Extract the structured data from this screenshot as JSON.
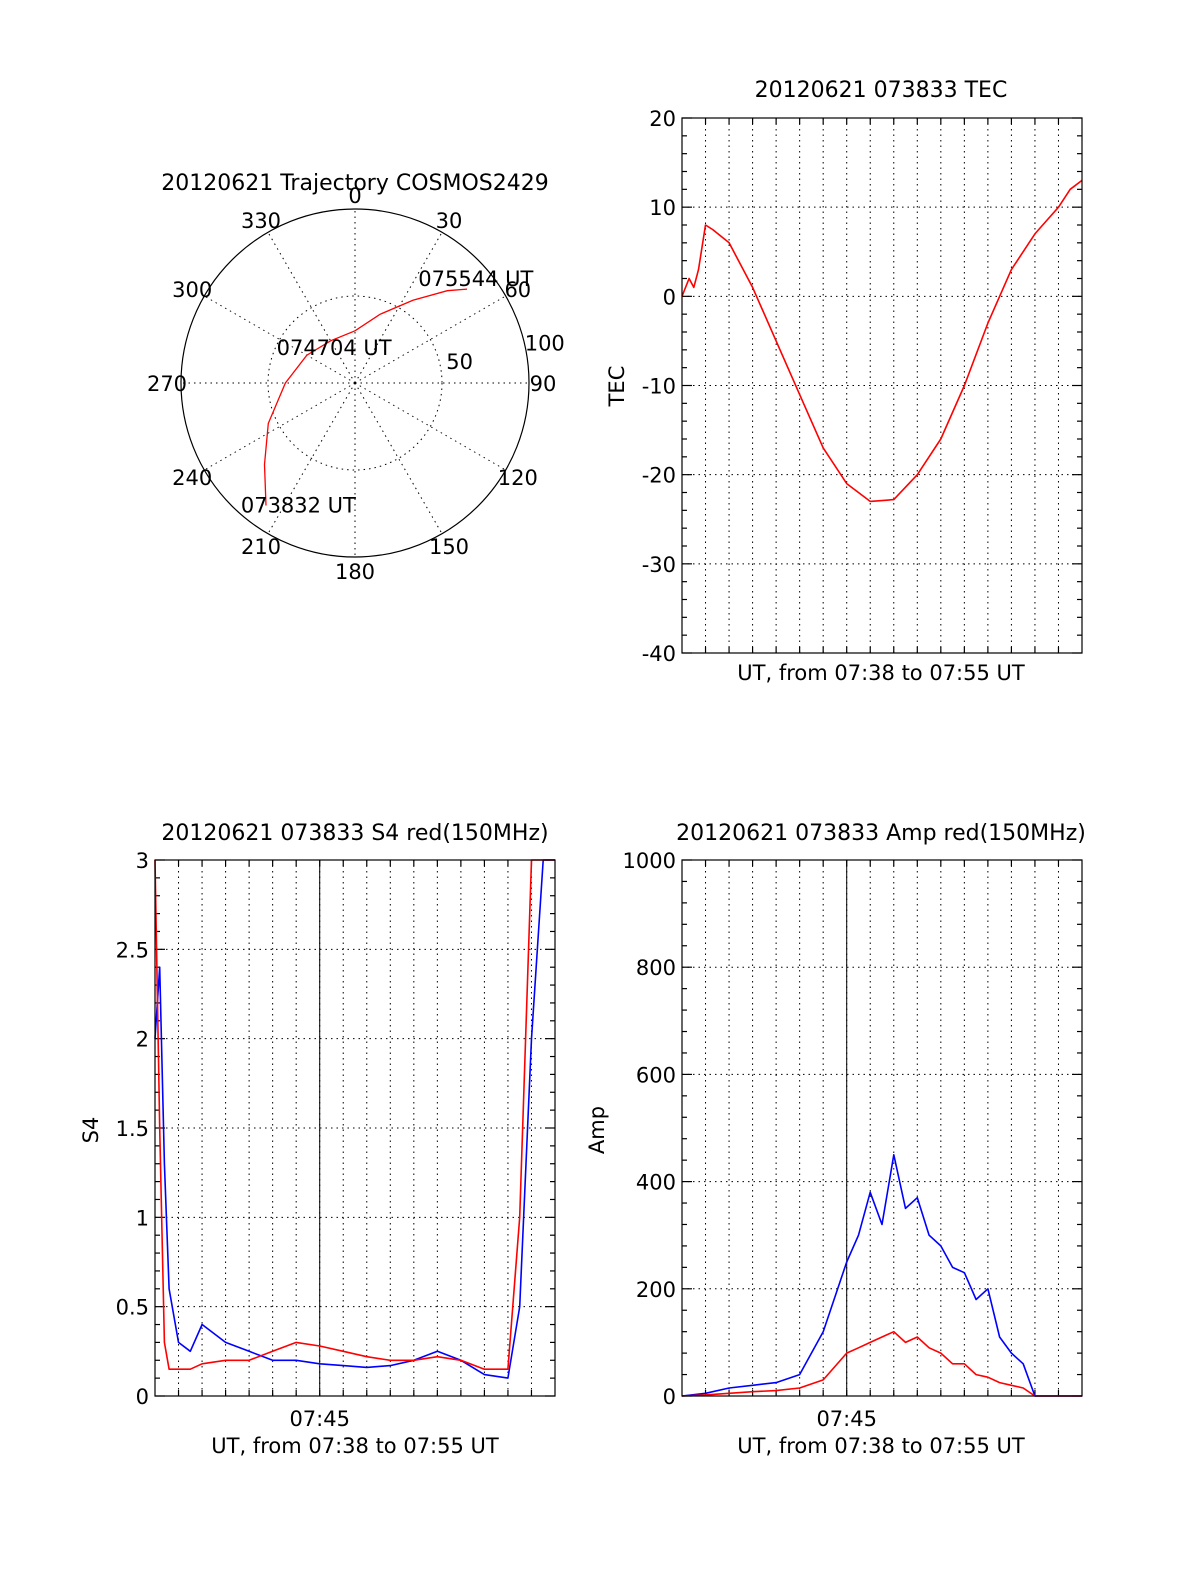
{
  "colors": {
    "red": "#ff0000",
    "blue": "#0000ff",
    "axis": "#000000"
  },
  "chart_data": [
    {
      "type": "polar",
      "title": "20120621 Trajectory COSMOS2429",
      "azimuth_labels": [
        "0",
        "30",
        "60",
        "90",
        "120",
        "150",
        "180",
        "210",
        "240",
        "270",
        "300",
        "330"
      ],
      "radial_labels": [
        "50",
        "100"
      ],
      "radial_values": [
        50,
        100
      ],
      "rmax": 100,
      "series": [
        {
          "color": "#ff0000",
          "points": [
            {
              "az": 216,
              "r": 87
            },
            {
              "az": 228,
              "r": 70
            },
            {
              "az": 245,
              "r": 55
            },
            {
              "az": 270,
              "r": 40
            },
            {
              "az": 300,
              "r": 32
            },
            {
              "az": 330,
              "r": 28
            },
            {
              "az": 0,
              "r": 30
            },
            {
              "az": 20,
              "r": 42
            },
            {
              "az": 35,
              "r": 58
            },
            {
              "az": 45,
              "r": 75
            },
            {
              "az": 50,
              "r": 84
            }
          ]
        }
      ],
      "annotations": [
        {
          "text": "075544 UT",
          "az": 49,
          "r": 92
        },
        {
          "text": "074704 UT",
          "az": 330,
          "r": 24
        },
        {
          "text": "073832 UT",
          "az": 205,
          "r": 77
        }
      ]
    },
    {
      "type": "line",
      "title": "20120621 073833 TEC",
      "xlabel": "UT, from 07:38 to 07:55 UT",
      "ylabel": "TEC",
      "xlim": [
        0,
        17
      ],
      "ylim": [
        -40,
        20
      ],
      "yticks": [
        "20",
        "10",
        "0",
        "-10",
        "-20",
        "-30",
        "-40"
      ],
      "ytick_values": [
        20,
        10,
        0,
        -10,
        -20,
        -30,
        -40
      ],
      "series": [
        {
          "color": "#ff0000",
          "x": [
            0,
            0.3,
            0.5,
            0.7,
            1.0,
            1.3,
            2.0,
            3.0,
            4.0,
            5.0,
            6.0,
            7.0,
            8.0,
            9.0,
            10.0,
            11.0,
            12.0,
            13.0,
            14.0,
            15.0,
            15.5,
            16.0,
            16.5,
            17.0
          ],
          "y": [
            0,
            2,
            1,
            3,
            8,
            7.5,
            6,
            1,
            -5,
            -11,
            -17,
            -21,
            -23,
            -22.8,
            -20,
            -16,
            -10,
            -3,
            3,
            7,
            8.5,
            10,
            12,
            13
          ]
        }
      ]
    },
    {
      "type": "line",
      "title": "20120621 073833 S4 red(150MHz)",
      "xlabel": "UT, from 07:38 to 07:55 UT",
      "ylabel": "S4",
      "xlim": [
        0,
        17
      ],
      "ylim": [
        0,
        3
      ],
      "xticks": [
        "07:45"
      ],
      "xtick_values": [
        7
      ],
      "yticks": [
        "3",
        "2.5",
        "2",
        "1.5",
        "1",
        "0.5",
        "0"
      ],
      "ytick_values": [
        3,
        2.5,
        2,
        1.5,
        1,
        0.5,
        0
      ],
      "series": [
        {
          "color": "#0000ff",
          "x": [
            0,
            0.2,
            0.4,
            0.6,
            1.0,
            1.5,
            2.0,
            3.0,
            4.0,
            5.0,
            6.0,
            7.0,
            8.0,
            9.0,
            10.0,
            11.0,
            12.0,
            13.0,
            14.0,
            15.0,
            15.5,
            16.0,
            16.5,
            17.0
          ],
          "y": [
            2.0,
            2.4,
            1.3,
            0.6,
            0.3,
            0.25,
            0.4,
            0.3,
            0.25,
            0.2,
            0.2,
            0.18,
            0.17,
            0.16,
            0.17,
            0.2,
            0.25,
            0.2,
            0.12,
            0.1,
            0.5,
            2.0,
            3.0,
            3.0
          ]
        },
        {
          "color": "#ff0000",
          "x": [
            0,
            0.2,
            0.4,
            0.6,
            1.0,
            1.5,
            2.0,
            3.0,
            4.0,
            5.0,
            6.0,
            7.0,
            8.0,
            9.0,
            10.0,
            11.0,
            12.0,
            13.0,
            14.0,
            15.0,
            15.5,
            16.0,
            16.5,
            17.0
          ],
          "y": [
            3.0,
            1.5,
            0.3,
            0.15,
            0.15,
            0.15,
            0.18,
            0.2,
            0.2,
            0.25,
            0.3,
            0.28,
            0.25,
            0.22,
            0.2,
            0.2,
            0.22,
            0.2,
            0.15,
            0.15,
            1.0,
            3.0,
            3.0,
            3.0
          ]
        }
      ]
    },
    {
      "type": "line",
      "title": "20120621 073833 Amp red(150MHz)",
      "xlabel": "UT, from 07:38 to 07:55 UT",
      "ylabel": "Amp",
      "xlim": [
        0,
        17
      ],
      "ylim": [
        0,
        1000
      ],
      "xticks": [
        "07:45"
      ],
      "xtick_values": [
        7
      ],
      "yticks": [
        "1000",
        "800",
        "600",
        "400",
        "200",
        "0"
      ],
      "ytick_values": [
        1000,
        800,
        600,
        400,
        200,
        0
      ],
      "series": [
        {
          "color": "#0000ff",
          "x": [
            0,
            1,
            2,
            3,
            4,
            5,
            6,
            7,
            7.5,
            8,
            8.5,
            9,
            9.5,
            10,
            10.5,
            11,
            11.5,
            12,
            12.5,
            13,
            13.5,
            14,
            14.5,
            15,
            16,
            17
          ],
          "y": [
            0,
            5,
            15,
            20,
            25,
            40,
            120,
            250,
            300,
            380,
            320,
            450,
            350,
            370,
            300,
            280,
            240,
            230,
            180,
            200,
            110,
            80,
            60,
            0,
            0,
            0
          ]
        },
        {
          "color": "#ff0000",
          "x": [
            0,
            1,
            2,
            3,
            4,
            5,
            6,
            7,
            7.5,
            8,
            8.5,
            9,
            9.5,
            10,
            10.5,
            11,
            11.5,
            12,
            12.5,
            13,
            13.5,
            14,
            14.5,
            15,
            16,
            17
          ],
          "y": [
            0,
            2,
            5,
            8,
            10,
            15,
            30,
            80,
            90,
            100,
            110,
            120,
            100,
            110,
            90,
            80,
            60,
            60,
            40,
            35,
            25,
            20,
            15,
            0,
            0,
            0
          ]
        }
      ]
    }
  ]
}
